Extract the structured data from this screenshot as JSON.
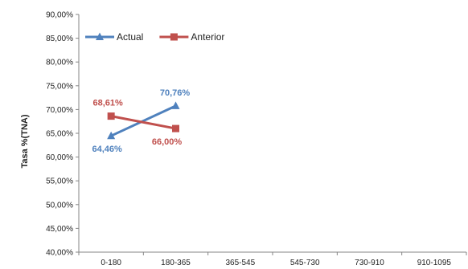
{
  "chart_data": {
    "type": "line",
    "ylabel": "Tasa  %(TNA)",
    "categories": [
      "0-180",
      "180-365",
      "365-545",
      "545-730",
      "730-910",
      "910-1095"
    ],
    "y_ticks": [
      "40,00%",
      "45,00%",
      "50,00%",
      "55,00%",
      "60,00%",
      "65,00%",
      "70,00%",
      "75,00%",
      "80,00%",
      "85,00%",
      "90,00%"
    ],
    "ylim": [
      40,
      90
    ],
    "grid": false,
    "legend": "top-left",
    "series": [
      {
        "name": "Actual",
        "color": "#4f81bd",
        "marker": "triangle",
        "values": [
          64.46,
          70.76,
          null,
          null,
          null,
          null
        ],
        "labels": [
          "64,46%",
          "70,76%",
          null,
          null,
          null,
          null
        ]
      },
      {
        "name": "Anterior",
        "color": "#c0504d",
        "marker": "square",
        "values": [
          68.61,
          66.0,
          null,
          null,
          null,
          null
        ],
        "labels": [
          "68,61%",
          "66,00%",
          null,
          null,
          null,
          null
        ]
      }
    ]
  }
}
